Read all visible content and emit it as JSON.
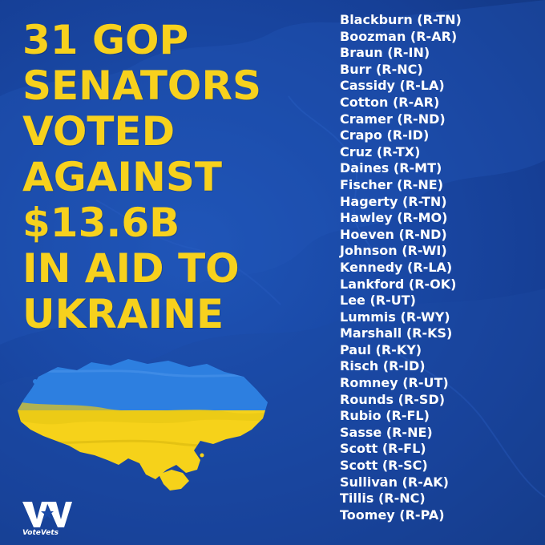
{
  "headline": {
    "lines": [
      "31 GOP",
      "SENATORS",
      "VOTED",
      "AGAINST",
      "$13.6B",
      "IN AID TO",
      "UKRAINE"
    ]
  },
  "senators": [
    "Blackburn (R-TN)",
    "Boozman (R-AR)",
    "Braun (R-IN)",
    "Burr (R-NC)",
    "Cassidy (R-LA)",
    "Cotton (R-AR)",
    "Cramer (R-ND)",
    "Crapo (R-ID)",
    "Cruz (R-TX)",
    "Daines (R-MT)",
    "Fischer (R-NE)",
    "Hagerty (R-TN)",
    "Hawley (R-MO)",
    "Hoeven (R-ND)",
    "Johnson (R-WI)",
    "Kennedy (R-LA)",
    "Lankford (R-OK)",
    "Lee (R-UT)",
    "Lummis (R-WY)",
    "Marshall (R-KS)",
    "Paul (R-KY)",
    "Risch (R-ID)",
    "Romney (R-UT)",
    "Rounds (R-SD)",
    "Rubio (R-FL)",
    "Sasse (R-NE)",
    "Scott (R-FL)",
    "Scott (R-SC)",
    "Sullivan (R-AK)",
    "Tillis (R-NC)",
    "Toomey (R-PA)"
  ],
  "logo": {
    "text": "VoteVets",
    "icon": "votevets-star-v-logo"
  },
  "colors": {
    "background": "#1a4aa8",
    "headline": "#f7d11d",
    "list_text": "#ffffff",
    "flag_blue": "#2d7fe0",
    "flag_yellow": "#f6d21a"
  }
}
